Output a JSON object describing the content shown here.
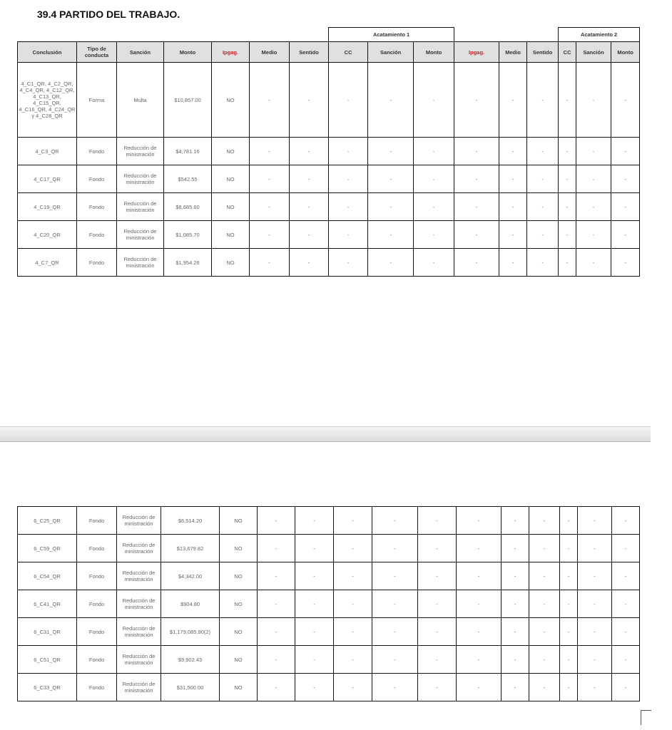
{
  "title": "39.4 PARTIDO DEL TRABAJO.",
  "groups": {
    "acatamiento1": "Acatamiento 1",
    "acatamiento2": "Acatamiento 2"
  },
  "headers": [
    "Conclusión",
    "Tipo de conducta",
    "Sanción",
    "Monto",
    "Ipgag.",
    "Medio",
    "Sentido",
    "CC",
    "Sanción",
    "Monto",
    "Ipgag.",
    "Medio",
    "Sentido",
    "CC",
    "Sanción",
    "Monto"
  ],
  "header_colors": {
    "ipgag": "#c0262c",
    "header_bg": "#e0e0e0"
  },
  "table1_rows": [
    [
      "4_C1_QR, 4_C2_QR, 4_C4_QR, 4_C12_QR, 4_C13_QR, 4_C15_QR, 4_C16_QR, 4_C24_QR y 4_C28_QR",
      "Forma",
      "Multa",
      "$10,857.00",
      "NO",
      "-",
      "-",
      "-",
      "-",
      "-",
      "-",
      "-",
      "-",
      "-",
      "-",
      "-"
    ],
    [
      "4_C3_QR",
      "Fondo",
      "Reducción de ministración",
      "$4,781.16",
      "NO",
      "-",
      "-",
      "-",
      "-",
      "-",
      "-",
      "-",
      "-",
      "-",
      "-",
      "-"
    ],
    [
      "4_C17_QR",
      "Fondo",
      "Reducción de ministración",
      "$542.55",
      "NO",
      "-",
      "-",
      "-",
      "-",
      "-",
      "-",
      "-",
      "-",
      "-",
      "-",
      "-"
    ],
    [
      "4_C19_QR",
      "Fondo",
      "Reducción de ministración",
      "$8,685.60",
      "NO",
      "-",
      "-",
      "-",
      "-",
      "-",
      "-",
      "-",
      "-",
      "-",
      "-",
      "-"
    ],
    [
      "4_C20_QR",
      "Fondo",
      "Reducción de ministración",
      "$1,085.70",
      "NO",
      "-",
      "-",
      "-",
      "-",
      "-",
      "-",
      "-",
      "-",
      "-",
      "-",
      "-"
    ],
    [
      "4_C7_QR",
      "Fondo",
      "Reducción de ministración",
      "$1,954.26",
      "NO",
      "-",
      "-",
      "-",
      "-",
      "-",
      "-",
      "-",
      "-",
      "-",
      "-",
      "-"
    ]
  ],
  "table2_rows": [
    [
      "6_C25_QR",
      "Fondo",
      "Reducción de ministración",
      "$6,514.20",
      "NO",
      "-",
      "-",
      "-",
      "-",
      "-",
      "-",
      "-",
      "-",
      "-",
      "-",
      "-"
    ],
    [
      "6_C59_QR",
      "Fondo",
      "Reducción de ministración",
      "$13,679.82",
      "NO",
      "-",
      "-",
      "-",
      "-",
      "-",
      "-",
      "-",
      "-",
      "-",
      "-",
      "-"
    ],
    [
      "6_C54_QR",
      "Fondo",
      "Reducción de ministración",
      "$4,342.00",
      "NO",
      "-",
      "-",
      "-",
      "-",
      "-",
      "-",
      "-",
      "-",
      "-",
      "-",
      "-"
    ],
    [
      "6_C41_QR",
      "Fondo",
      "Reducción de ministración",
      "$904.80",
      "NO",
      "-",
      "-",
      "-",
      "-",
      "-",
      "-",
      "-",
      "-",
      "-",
      "-",
      "-"
    ],
    [
      "6_C31_QR",
      "Fondo",
      "Reducción de ministración",
      "$1,179,085.90(2)",
      "NO",
      "-",
      "-",
      "-",
      "-",
      "-",
      "-",
      "-",
      "-",
      "-",
      "-",
      "-"
    ],
    [
      "6_C51_QR",
      "Fondo",
      "Reducción de ministración",
      "$9,902.43",
      "NO",
      "-",
      "-",
      "-",
      "-",
      "-",
      "-",
      "-",
      "-",
      "-",
      "-",
      "-"
    ],
    [
      "6_C33_QR",
      "Fondo",
      "Reducción de ministración",
      "$31,500.00",
      "NO",
      "-",
      "-",
      "-",
      "-",
      "-",
      "-",
      "-",
      "-",
      "-",
      "-",
      "-"
    ]
  ]
}
